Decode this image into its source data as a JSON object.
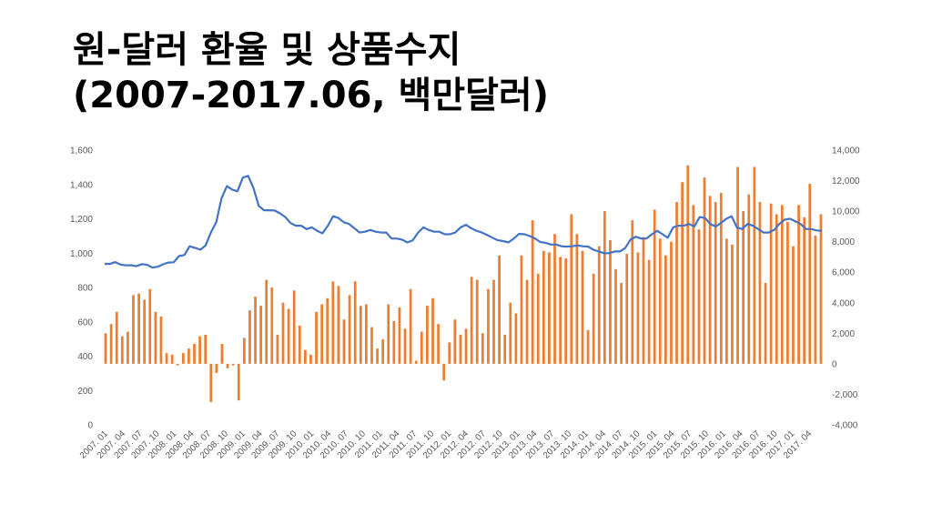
{
  "title_line1": "원-달러 환율 및 상품수지",
  "title_line2": "(2007-2017.06, 백만달러)",
  "chart_data": {
    "type": "bar+line",
    "left_axis": {
      "min": 0,
      "max": 1600,
      "step": 200,
      "ticks": [
        "0",
        "200",
        "400",
        "600",
        "800",
        "1,000",
        "1,200",
        "1,400",
        "1,600"
      ]
    },
    "right_axis": {
      "min": -4000,
      "max": 14000,
      "step": 2000,
      "ticks": [
        "-4,000",
        "-2,000",
        "0",
        "2,000",
        "4,000",
        "6,000",
        "8,000",
        "10,000",
        "12,000",
        "14,000"
      ]
    },
    "x_tick_labels": [
      "2007. 01",
      "2007. 04",
      "2007. 07",
      "2007. 10",
      "2008. 01",
      "2008. 04",
      "2008. 07",
      "2008. 10",
      "2009. 01",
      "2009. 04",
      "2009. 07",
      "2009. 10",
      "2010. 01",
      "2010. 04",
      "2010. 07",
      "2010. 10",
      "2011. 01",
      "2011. 04",
      "2011. 07",
      "2011. 10",
      "2012. 01",
      "2012. 04",
      "2012. 07",
      "2012. 10",
      "2013. 01",
      "2013. 04",
      "2013. 07",
      "2013. 10",
      "2014. 01",
      "2014. 04",
      "2014. 07",
      "2014. 10",
      "2015. 01",
      "2015. 04",
      "2015. 07",
      "2015. 10",
      "2016. 01",
      "2016. 04",
      "2016. 07",
      "2016. 10",
      "2017. 01",
      "2017. 04"
    ],
    "series": [
      {
        "name": "",
        "kind": "bar",
        "axis": "right",
        "color": "#ED7D31",
        "values": [
          2000,
          2600,
          3400,
          1800,
          2100,
          4500,
          4600,
          4200,
          4900,
          3400,
          3100,
          700,
          600,
          -100,
          700,
          1000,
          1300,
          1800,
          1900,
          -2500,
          -600,
          1300,
          -300,
          -100,
          -2400,
          1700,
          3500,
          4400,
          3800,
          5500,
          5000,
          1900,
          4000,
          3600,
          4800,
          2500,
          900,
          600,
          3400,
          3900,
          4300,
          5400,
          5100,
          2900,
          4500,
          5400,
          3800,
          3900,
          2400,
          1000,
          1600,
          3900,
          2800,
          3700,
          2300,
          4900,
          200,
          2100,
          3800,
          4300,
          2600,
          -1100,
          1400,
          2900,
          1900,
          2300,
          5700,
          5500,
          2000,
          4900,
          5500,
          7100,
          1900,
          4000,
          3300,
          7100,
          5500,
          9400,
          5900,
          7400,
          7300,
          8500,
          7000,
          6900,
          9800,
          8500,
          7400,
          2200,
          5900,
          7700,
          10000,
          8100,
          6200,
          5300,
          7200,
          9400,
          7300,
          8300,
          6800,
          10100,
          8200,
          7100,
          8000,
          10600,
          11900,
          13000,
          10400,
          8800,
          12200,
          11000,
          10600,
          11200,
          8200,
          7800,
          12900,
          10000,
          11100,
          12900,
          10600,
          5300,
          10500,
          9800,
          10400,
          9300,
          7700,
          10400,
          9600,
          11800,
          8400,
          9800
        ],
        "range_note": "bars span monthly 2007.01 to 2017.06"
      },
      {
        "name": "",
        "kind": "line",
        "axis": "left",
        "color": "#4472C4",
        "values": [
          938,
          937,
          948,
          933,
          929,
          930,
          924,
          936,
          932,
          916,
          921,
          935,
          945,
          947,
          983,
          989,
          1040,
          1031,
          1020,
          1045,
          1120,
          1180,
          1320,
          1390,
          1370,
          1360,
          1440,
          1450,
          1380,
          1275,
          1250,
          1250,
          1248,
          1232,
          1210,
          1175,
          1160,
          1160,
          1140,
          1150,
          1130,
          1115,
          1160,
          1215,
          1205,
          1180,
          1170,
          1145,
          1120,
          1125,
          1135,
          1125,
          1120,
          1120,
          1085,
          1085,
          1078,
          1062,
          1075,
          1120,
          1150,
          1135,
          1125,
          1125,
          1110,
          1110,
          1120,
          1150,
          1165,
          1145,
          1130,
          1120,
          1105,
          1090,
          1075,
          1070,
          1062,
          1085,
          1112,
          1110,
          1100,
          1085,
          1065,
          1060,
          1050,
          1050,
          1040,
          1038,
          1040,
          1045,
          1040,
          1038,
          1020,
          1010,
          1000,
          1000,
          1010,
          1010,
          1030,
          1080,
          1095,
          1085,
          1085,
          1110,
          1130,
          1110,
          1090,
          1150,
          1160,
          1160,
          1170,
          1155,
          1210,
          1205,
          1170,
          1155,
          1175,
          1200,
          1215,
          1150,
          1140,
          1170,
          1160,
          1140,
          1120,
          1120,
          1135,
          1170,
          1195,
          1200,
          1185,
          1170,
          1140,
          1140,
          1132,
          1130
        ]
      }
    ]
  }
}
